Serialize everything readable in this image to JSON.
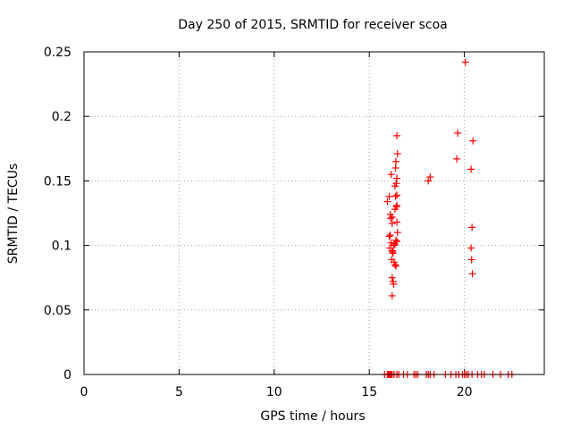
{
  "chart_data": {
    "type": "scatter",
    "title": "Day 250 of 2015, SRMTID for receiver scoa",
    "xlabel": "GPS time / hours",
    "ylabel": "SRMTID / TECUs",
    "xlim": [
      0,
      24.2
    ],
    "ylim": [
      0,
      0.25
    ],
    "x_ticks": [
      0,
      5,
      10,
      15,
      20
    ],
    "x_tick_labels": [
      "0",
      "5",
      "10",
      "15",
      "20"
    ],
    "y_ticks": [
      0,
      0.05,
      0.1,
      0.15,
      0.2,
      0.25
    ],
    "y_tick_labels": [
      "0",
      "0.05",
      "0.1",
      "0.15",
      "0.2",
      "0.25"
    ],
    "grid": true,
    "marker": "+",
    "color": "#ff0000",
    "series": [
      {
        "name": "SRMTID",
        "points": [
          [
            15.95,
            0.134
          ],
          [
            16.05,
            0.138
          ],
          [
            16.1,
            0.124
          ],
          [
            16.12,
            0.121
          ],
          [
            16.15,
            0.155
          ],
          [
            16.2,
            0.122
          ],
          [
            16.2,
            0.117
          ],
          [
            16.1,
            0.108
          ],
          [
            16.05,
            0.107
          ],
          [
            16.15,
            0.102
          ],
          [
            16.08,
            0.098
          ],
          [
            16.2,
            0.096
          ],
          [
            16.22,
            0.095
          ],
          [
            16.25,
            0.094
          ],
          [
            16.18,
            0.089
          ],
          [
            16.3,
            0.087
          ],
          [
            16.35,
            0.085
          ],
          [
            16.4,
            0.084
          ],
          [
            16.2,
            0.075
          ],
          [
            16.25,
            0.072
          ],
          [
            16.28,
            0.07
          ],
          [
            16.2,
            0.061
          ],
          [
            16.35,
            0.128
          ],
          [
            16.42,
            0.13
          ],
          [
            16.45,
            0.131
          ],
          [
            16.38,
            0.138
          ],
          [
            16.45,
            0.139
          ],
          [
            16.42,
            0.148
          ],
          [
            16.35,
            0.146
          ],
          [
            16.45,
            0.152
          ],
          [
            16.38,
            0.16
          ],
          [
            16.4,
            0.165
          ],
          [
            16.48,
            0.171
          ],
          [
            16.45,
            0.185
          ],
          [
            16.45,
            0.118
          ],
          [
            16.48,
            0.11
          ],
          [
            16.4,
            0.104
          ],
          [
            16.45,
            0.103
          ],
          [
            16.35,
            0.101
          ],
          [
            16.3,
            0.1
          ],
          [
            18.1,
            0.15
          ],
          [
            18.2,
            0.153
          ],
          [
            19.6,
            0.167
          ],
          [
            19.65,
            0.187
          ],
          [
            20.05,
            0.242
          ],
          [
            20.35,
            0.159
          ],
          [
            20.45,
            0.181
          ],
          [
            20.4,
            0.114
          ],
          [
            20.35,
            0.098
          ],
          [
            20.38,
            0.089
          ],
          [
            20.42,
            0.078
          ],
          [
            15.8,
            0
          ],
          [
            15.95,
            0
          ],
          [
            16.0,
            0
          ],
          [
            16.05,
            0
          ],
          [
            16.1,
            0
          ],
          [
            16.15,
            0
          ],
          [
            16.2,
            0
          ],
          [
            16.3,
            0
          ],
          [
            16.45,
            0
          ],
          [
            16.55,
            0
          ],
          [
            16.8,
            0
          ],
          [
            17.0,
            0
          ],
          [
            17.35,
            0
          ],
          [
            17.45,
            0
          ],
          [
            17.55,
            0
          ],
          [
            18.0,
            0
          ],
          [
            18.1,
            0
          ],
          [
            18.2,
            0
          ],
          [
            18.4,
            0
          ],
          [
            19.0,
            0
          ],
          [
            19.3,
            0
          ],
          [
            19.55,
            0
          ],
          [
            19.7,
            0
          ],
          [
            19.9,
            0
          ],
          [
            20.0,
            0
          ],
          [
            20.1,
            0
          ],
          [
            20.2,
            0
          ],
          [
            20.4,
            0
          ],
          [
            20.7,
            0
          ],
          [
            20.9,
            0
          ],
          [
            21.05,
            0
          ],
          [
            21.5,
            0
          ],
          [
            21.9,
            0
          ],
          [
            22.3,
            0
          ],
          [
            22.5,
            0
          ]
        ]
      }
    ]
  }
}
